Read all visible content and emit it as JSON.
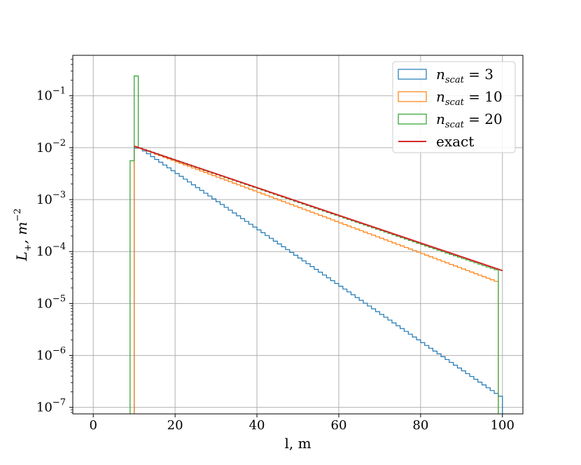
{
  "chart_data": {
    "type": "line",
    "subtype": "step-histogram",
    "title": "",
    "xlabel": "l, m",
    "ylabel_main": "L",
    "ylabel_sub": "+",
    "ylabel_rest": ", m",
    "ylabel_sup": "−2",
    "xlim": [
      -5,
      105
    ],
    "ylim": [
      7.5e-08,
      0.6
    ],
    "yscale": "log",
    "grid": true,
    "legend_position": "top-right",
    "xticks": [
      0,
      20,
      40,
      60,
      80,
      100
    ],
    "yticks": [
      {
        "value": 1e-07,
        "base": "10",
        "exp": "−7"
      },
      {
        "value": 1e-06,
        "base": "10",
        "exp": "−6"
      },
      {
        "value": 1e-05,
        "base": "10",
        "exp": "−5"
      },
      {
        "value": 0.0001,
        "base": "10",
        "exp": "−4"
      },
      {
        "value": 0.001,
        "base": "10",
        "exp": "−3"
      },
      {
        "value": 0.01,
        "base": "10",
        "exp": "−2"
      },
      {
        "value": 0.1,
        "base": "10",
        "exp": "−1"
      }
    ],
    "bin_start": 9,
    "bin_end": 99,
    "bin_width": 1,
    "series": [
      {
        "name": "exact",
        "legend_main": "exact",
        "legend_sub": "",
        "legend_value": "",
        "kind": "line",
        "color": "#d62728",
        "x0": 10,
        "y0": 0.0107,
        "x1": 100,
        "y1": 4.3e-05
      },
      {
        "name": "n_scat = 3",
        "legend_main": "n",
        "legend_sub": "scat",
        "legend_value": " = 3",
        "kind": "hist",
        "color": "#1f77b4",
        "x0": 11,
        "y0": 0.0098,
        "x1": 99,
        "y1": 1.45e-07
      },
      {
        "name": "n_scat = 10",
        "legend_main": "n",
        "legend_sub": "scat",
        "legend_value": " = 10",
        "kind": "hist",
        "color": "#ff7f0e",
        "start_y": 0.0098,
        "mid_x": 55,
        "mid_y": 0.0005,
        "x1": 99,
        "y1": 2.5e-05
      },
      {
        "name": "n_scat = 20",
        "legend_main": "n",
        "legend_sub": "scat",
        "legend_value": " = 20",
        "kind": "hist",
        "color": "#2ca02c",
        "first_bins": [
          0.0056,
          0.24
        ],
        "start_y": 0.0098,
        "x1": 99,
        "y1": 4.2e-05
      }
    ]
  }
}
